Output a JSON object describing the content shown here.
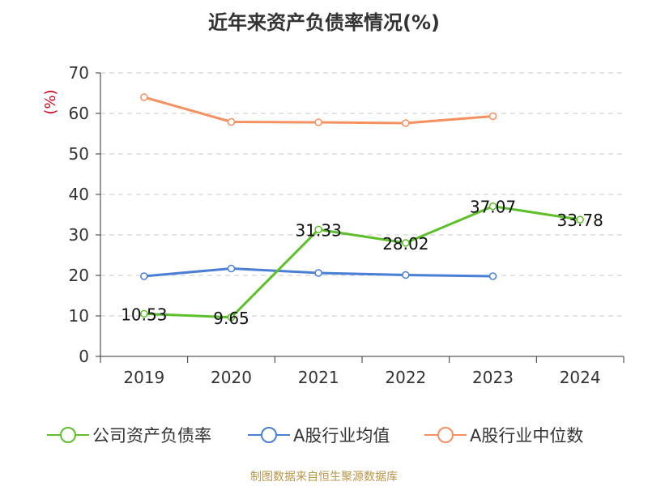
{
  "title": "近年来资产负债率情况(%)",
  "source": "制图数据来自恒生聚源数据库",
  "colors": {
    "company": "#5dbf2a",
    "industry_avg": "#4a7fd6",
    "industry_median": "#f59060",
    "axis": "#333333",
    "grid": "#c8c8c8",
    "unit": "#d0021b",
    "source": "#b8964a"
  },
  "legend": {
    "company": "公司资产负债率",
    "industry_avg": "A股行业均值",
    "industry_median": "A股行业中位数"
  },
  "chart_data": {
    "type": "line",
    "title": "近年来资产负债率情况(%)",
    "ylabel": "(%)",
    "xlabel": "",
    "categories": [
      "2019",
      "2020",
      "2021",
      "2022",
      "2023",
      "2024"
    ],
    "ylim": [
      0,
      70
    ],
    "yticks": [
      0,
      10,
      20,
      30,
      40,
      50,
      60,
      70
    ],
    "grid": true,
    "legend_position": "bottom",
    "series": [
      {
        "key": "company",
        "name": "公司资产负债率",
        "values": [
          10.53,
          9.65,
          31.33,
          28.02,
          37.07,
          33.78
        ],
        "data_labels": [
          "10.53",
          "9.65",
          "31.33",
          "28.02",
          "37.07",
          "33.78"
        ]
      },
      {
        "key": "industry_avg",
        "name": "A股行业均值",
        "values": [
          19.8,
          21.7,
          20.6,
          20.1,
          19.8,
          null
        ]
      },
      {
        "key": "industry_median",
        "name": "A股行业中位数",
        "values": [
          64.0,
          57.9,
          57.8,
          57.6,
          59.3,
          null
        ]
      }
    ]
  }
}
